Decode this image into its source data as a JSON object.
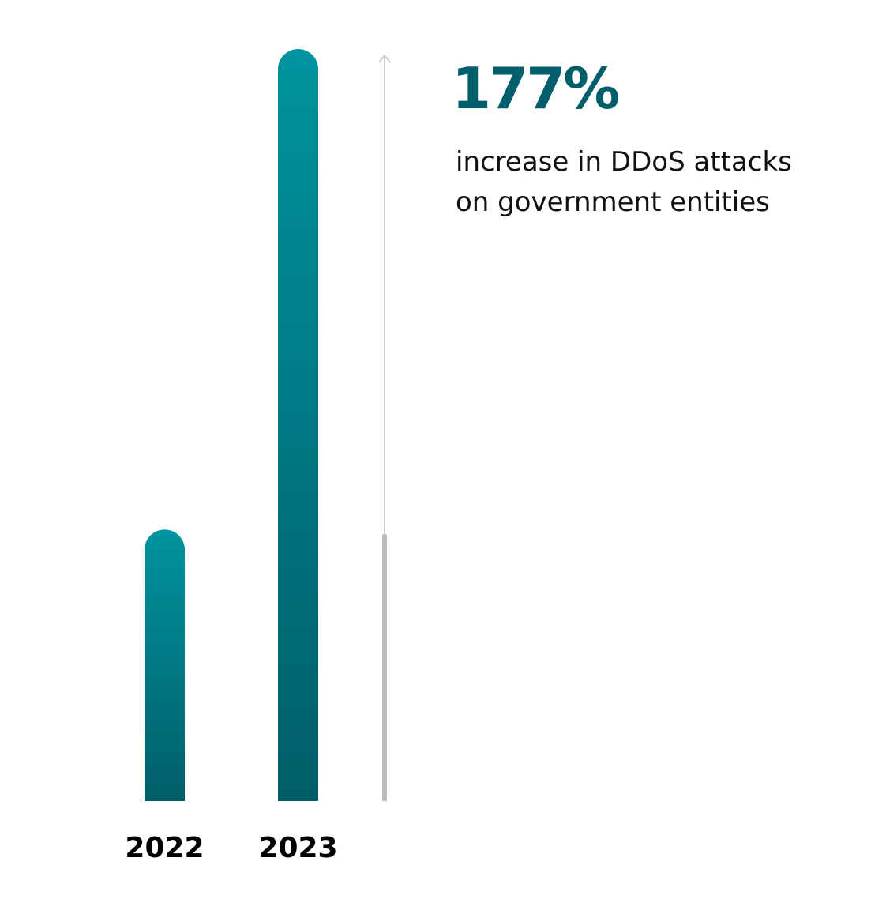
{
  "chart_data": {
    "type": "bar",
    "categories": [
      "2022",
      "2023"
    ],
    "values": [
      100,
      277
    ],
    "ylim": [
      0,
      277
    ],
    "grid": false,
    "annotation": {
      "value": "177%",
      "caption_line1": "increase in DDoS attacks",
      "caption_line2": "on government entities"
    }
  },
  "colors": {
    "bar_top": "#00939f",
    "bar_bottom": "#005e68",
    "accent": "#005f6b",
    "arrow": "#c4c4c4",
    "arrow_base": "#bdbdbd"
  }
}
